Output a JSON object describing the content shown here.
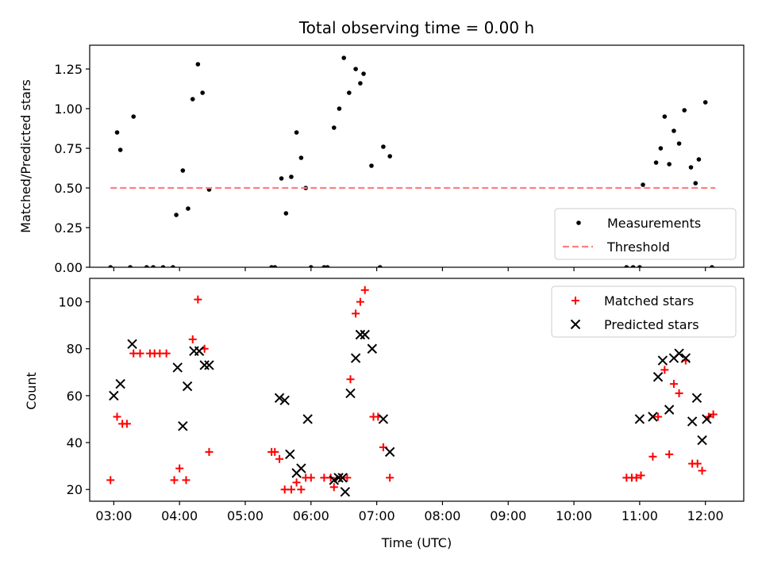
{
  "chart_data": [
    {
      "type": "scatter",
      "title": "Total observing time = 0.00 h",
      "ylabel": "Matched/Predicted stars",
      "xlabel": "",
      "xlim": [
        2.6333,
        12.5833
      ],
      "ylim": [
        0,
        1.4
      ],
      "yticks": [
        0,
        0.25,
        0.5,
        0.75,
        1.0,
        1.25
      ],
      "ytick_labels": [
        "0.00",
        "0.25",
        "0.50",
        "0.75",
        "1.00",
        "1.25"
      ],
      "xticks": [
        3,
        4,
        5,
        6,
        7,
        8,
        9,
        10,
        11,
        12
      ],
      "xtick_labels": [
        "03:00",
        "04:00",
        "05:00",
        "06:00",
        "07:00",
        "08:00",
        "09:00",
        "10:00",
        "11:00",
        "12:00"
      ],
      "legend_position": "lower-right",
      "series": [
        {
          "name": "Measurements",
          "color": "#000000",
          "marker": "dot",
          "x": [
            2.95,
            3.25,
            3.5,
            3.6,
            3.75,
            3.9,
            5.4,
            5.45,
            6.0,
            6.2,
            6.25,
            7.05,
            10.8,
            10.9,
            11.0,
            12.1,
            3.05,
            3.1,
            3.3,
            3.95,
            4.05,
            4.13,
            4.2,
            4.28,
            4.35,
            4.45,
            5.55,
            5.62,
            5.7,
            5.78,
            5.85,
            5.92,
            6.35,
            6.43,
            6.5,
            6.58,
            6.68,
            6.75,
            6.8,
            6.92,
            7.1,
            7.2,
            11.05,
            11.25,
            11.32,
            11.38,
            11.45,
            11.52,
            11.6,
            11.68,
            11.78,
            11.85,
            11.9,
            12.0
          ],
          "y": [
            0,
            0,
            0,
            0,
            0,
            0,
            0,
            0,
            0,
            0,
            0,
            0,
            0,
            0,
            0,
            0,
            0.85,
            0.74,
            0.95,
            0.33,
            0.61,
            0.37,
            1.06,
            1.28,
            1.1,
            0.49,
            0.56,
            0.34,
            0.57,
            0.85,
            0.69,
            0.5,
            0.88,
            1.0,
            1.32,
            1.1,
            1.25,
            1.16,
            1.22,
            0.64,
            0.76,
            0.7,
            0.52,
            0.66,
            0.75,
            0.95,
            0.65,
            0.86,
            0.78,
            0.99,
            0.63,
            0.53,
            0.68,
            1.04
          ]
        },
        {
          "name": "Threshold",
          "color": "#ff7f7f",
          "line_style": "dashed",
          "x": [
            2.95,
            12.15
          ],
          "y": [
            0.5,
            0.5
          ]
        }
      ]
    },
    {
      "type": "scatter",
      "title": "",
      "ylabel": "Count",
      "xlabel": "Time (UTC)",
      "xlim": [
        2.6333,
        12.5833
      ],
      "ylim": [
        15,
        110
      ],
      "yticks": [
        20,
        40,
        60,
        80,
        100
      ],
      "ytick_labels": [
        "20",
        "40",
        "60",
        "80",
        "100"
      ],
      "xticks": [
        3,
        4,
        5,
        6,
        7,
        8,
        9,
        10,
        11,
        12
      ],
      "xtick_labels": [
        "03:00",
        "04:00",
        "05:00",
        "06:00",
        "07:00",
        "08:00",
        "09:00",
        "10:00",
        "11:00",
        "12:00"
      ],
      "legend_position": "upper-right",
      "series": [
        {
          "name": "Matched stars",
          "color": "#ff0000",
          "marker": "plus",
          "x": [
            2.95,
            3.05,
            3.13,
            3.2,
            3.3,
            3.4,
            3.55,
            3.62,
            3.7,
            3.8,
            3.92,
            4.0,
            4.1,
            4.2,
            4.28,
            4.38,
            4.45,
            5.4,
            5.45,
            5.52,
            5.6,
            5.7,
            5.78,
            5.85,
            5.92,
            6.0,
            6.2,
            6.3,
            6.35,
            6.45,
            6.55,
            6.6,
            6.68,
            6.75,
            6.82,
            6.95,
            7.02,
            7.1,
            7.2,
            10.8,
            10.88,
            10.95,
            11.02,
            11.2,
            11.28,
            11.38,
            11.45,
            11.52,
            11.6,
            11.7,
            11.8,
            11.88,
            11.95,
            12.05,
            12.12
          ],
          "y": [
            24,
            51,
            48,
            48,
            78,
            78,
            78,
            78,
            78,
            78,
            24,
            29,
            24,
            84,
            101,
            80,
            36,
            36,
            36,
            33,
            20,
            20,
            23,
            20,
            25,
            25,
            25,
            25,
            21,
            25,
            25,
            67,
            95,
            100,
            105,
            51,
            51,
            38,
            25,
            25,
            25,
            25,
            26,
            34,
            51,
            71,
            35,
            65,
            61,
            75,
            31,
            31,
            28,
            51,
            52
          ]
        },
        {
          "name": "Predicted stars",
          "color": "#000000",
          "marker": "x",
          "x": [
            3.0,
            3.1,
            3.28,
            3.97,
            4.05,
            4.12,
            4.22,
            4.3,
            4.38,
            4.45,
            5.52,
            5.6,
            5.68,
            5.78,
            5.85,
            5.95,
            6.35,
            6.42,
            6.48,
            6.52,
            6.6,
            6.68,
            6.75,
            6.82,
            6.93,
            7.1,
            7.2,
            11.0,
            11.2,
            11.28,
            11.35,
            11.45,
            11.52,
            11.6,
            11.7,
            11.8,
            11.87,
            11.95,
            12.02
          ],
          "y": [
            60,
            65,
            82,
            72,
            47,
            64,
            79,
            79,
            73,
            73,
            59,
            58,
            35,
            27,
            29,
            50,
            24,
            25,
            25,
            19,
            61,
            76,
            86,
            86,
            80,
            50,
            36,
            50,
            51,
            68,
            75,
            54,
            76,
            78,
            76,
            49,
            59,
            41,
            50
          ]
        }
      ]
    }
  ]
}
